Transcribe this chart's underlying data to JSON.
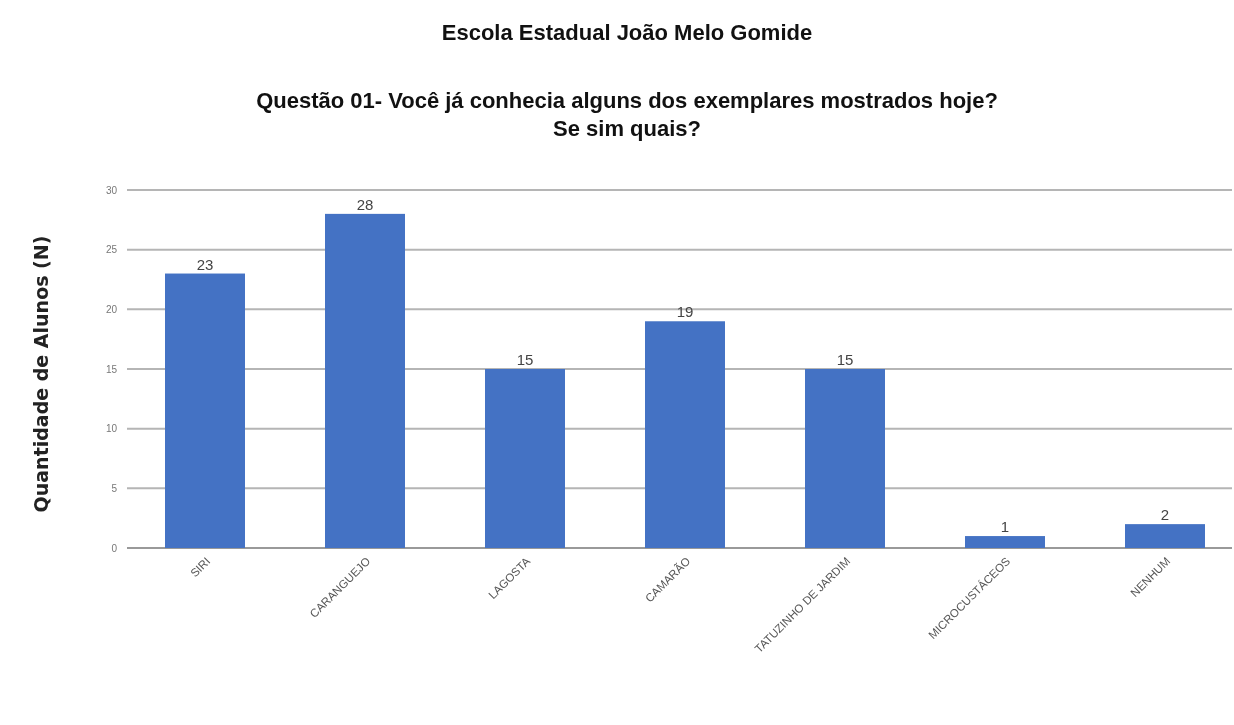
{
  "chart_data": {
    "type": "bar",
    "title": "Escola Estadual João Melo Gomide",
    "subtitle": "Questão 01- Você já conhecia alguns dos exemplares mostrados hoje?\nSe sim quais?",
    "ylabel": "Quantidade de Alunos (N)",
    "categories": [
      "SIRI",
      "CARANGUEJO",
      "LAGOSTA",
      "CAMARÃO",
      "TATUZINHO DE JARDIM",
      "MICROCUSTÁCEOS",
      "NENHUM"
    ],
    "values": [
      23,
      28,
      15,
      19,
      15,
      1,
      2
    ],
    "color": "#4472c4",
    "ylim": [
      0,
      30
    ],
    "yticks": [
      0,
      5,
      10,
      15,
      20,
      25,
      30
    ],
    "grid": "y",
    "data_labels": true
  }
}
